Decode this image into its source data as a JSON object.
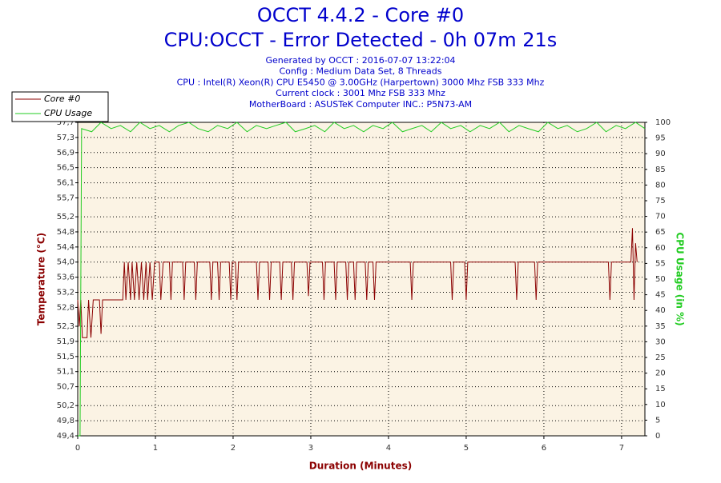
{
  "chart_data": {
    "type": "line",
    "title": "OCCT 4.4.2 - Core #0",
    "subtitle": "CPU:OCCT - Error Detected - 0h 07m 21s",
    "info_lines": [
      "Generated by OCCT : 2016-07-07 13:22:04",
      "Config : Medium Data Set, 8 Threads",
      "CPU : Intel(R) Xeon(R) CPU E5450 @ 3.00GHz (Harpertown) 3000 Mhz FSB 333 Mhz",
      "Current clock : 3001 Mhz FSB 333 Mhz",
      "MotherBoard : ASUSTeK Computer INC.: P5N73-AM"
    ],
    "x_label": "Duration (Minutes)",
    "y_label": "Temperature (°C)",
    "y2_label": "CPU Usage (in %)",
    "xlim": [
      0,
      7.3
    ],
    "xticks": [
      0,
      1,
      2,
      3,
      4,
      5,
      6,
      7
    ],
    "ylim": [
      49.4,
      57.7
    ],
    "yticks": [
      {
        "value": 49.4,
        "label": "49,4"
      },
      {
        "value": 49.8,
        "label": "49,8"
      },
      {
        "value": 50.2,
        "label": "50,2"
      },
      {
        "value": 50.7,
        "label": "50,7"
      },
      {
        "value": 51.1,
        "label": "51,1"
      },
      {
        "value": 51.5,
        "label": "51,5"
      },
      {
        "value": 51.9,
        "label": "51,9"
      },
      {
        "value": 52.3,
        "label": "52,3"
      },
      {
        "value": 52.8,
        "label": "52,8"
      },
      {
        "value": 53.2,
        "label": "53,2"
      },
      {
        "value": 53.6,
        "label": "53,6"
      },
      {
        "value": 54.0,
        "label": "54,0"
      },
      {
        "value": 54.4,
        "label": "54,4"
      },
      {
        "value": 54.8,
        "label": "54,8"
      },
      {
        "value": 55.2,
        "label": "55,2"
      },
      {
        "value": 55.7,
        "label": "55,7"
      },
      {
        "value": 56.1,
        "label": "56,1"
      },
      {
        "value": 56.5,
        "label": "56,5"
      },
      {
        "value": 56.9,
        "label": "56,9"
      },
      {
        "value": 57.3,
        "label": "57,3"
      },
      {
        "value": 57.7,
        "label": "57,7"
      }
    ],
    "y2lim": [
      0,
      100
    ],
    "y2ticks": [
      0,
      5,
      10,
      15,
      20,
      25,
      30,
      35,
      40,
      45,
      50,
      55,
      60,
      65,
      70,
      75,
      80,
      85,
      90,
      95,
      100
    ],
    "grid": true,
    "legend": "top-left",
    "series": [
      {
        "name": "Core #0",
        "color": "#8b0000",
        "x": [
          0,
          0.02,
          0.04,
          0.06,
          0.12,
          0.14,
          0.17,
          0.2,
          0.28,
          0.3,
          0.32,
          0.58,
          0.6,
          0.62,
          0.65,
          0.68,
          0.7,
          0.73,
          0.76,
          0.79,
          0.82,
          0.85,
          0.88,
          0.9,
          0.93,
          0.96,
          0.99,
          1.05,
          1.07,
          1.1,
          1.18,
          1.2,
          1.22,
          1.35,
          1.37,
          1.39,
          1.5,
          1.52,
          1.54,
          1.7,
          1.72,
          1.74,
          1.8,
          1.82,
          1.84,
          1.95,
          1.97,
          1.99,
          2.03,
          2.05,
          2.07,
          2.3,
          2.32,
          2.34,
          2.45,
          2.47,
          2.49,
          2.6,
          2.62,
          2.64,
          2.75,
          2.77,
          2.79,
          2.95,
          2.97,
          2.99,
          3.15,
          3.17,
          3.19,
          3.3,
          3.32,
          3.34,
          3.45,
          3.47,
          3.49,
          3.55,
          3.57,
          3.59,
          3.7,
          3.72,
          3.74,
          3.8,
          3.82,
          3.84,
          4.28,
          4.3,
          4.32,
          4.8,
          4.82,
          4.84,
          4.98,
          5.0,
          5.02,
          5.63,
          5.65,
          5.67,
          5.88,
          5.9,
          5.92,
          6.83,
          6.85,
          6.87,
          7.12,
          7.14,
          7.16,
          7.18,
          7.2
        ],
        "values": [
          53,
          52.3,
          53,
          52,
          52,
          53,
          52,
          53,
          53,
          52.1,
          53,
          53,
          54,
          53,
          54,
          53,
          54,
          53,
          54,
          53,
          54,
          53,
          54,
          53,
          54,
          53,
          54,
          54,
          53,
          54,
          54,
          53,
          54,
          54,
          53,
          54,
          54,
          53,
          54,
          54,
          53,
          54,
          54,
          53,
          54,
          54,
          53,
          54,
          54,
          53,
          54,
          54,
          53,
          54,
          54,
          53,
          54,
          54,
          53,
          54,
          54,
          53,
          54,
          54,
          53.1,
          54,
          54,
          53,
          54,
          54,
          53,
          54,
          54,
          53,
          54,
          54,
          53,
          54,
          54,
          53,
          54,
          54,
          53,
          54,
          54,
          53,
          54,
          54,
          53,
          54,
          54,
          53,
          54,
          54,
          53,
          54,
          54,
          53,
          54,
          54,
          53,
          54,
          54,
          54.9,
          53,
          54.5,
          54
        ]
      },
      {
        "name": "CPU Usage",
        "color": "#22cc22",
        "axis": "y2",
        "x": [
          0,
          0.03,
          0.05,
          0.18,
          0.3,
          0.43,
          0.55,
          0.68,
          0.8,
          0.93,
          1.05,
          1.18,
          1.3,
          1.43,
          1.55,
          1.68,
          1.8,
          1.93,
          2.05,
          2.18,
          2.3,
          2.43,
          2.55,
          2.68,
          2.8,
          2.93,
          3.05,
          3.18,
          3.3,
          3.43,
          3.55,
          3.68,
          3.8,
          3.93,
          4.05,
          4.18,
          4.3,
          4.43,
          4.55,
          4.68,
          4.8,
          4.93,
          5.05,
          5.18,
          5.3,
          5.43,
          5.55,
          5.68,
          5.8,
          5.93,
          6.05,
          6.18,
          6.3,
          6.43,
          6.55,
          6.68,
          6.8,
          6.93,
          7.05,
          7.18,
          7.3
        ],
        "values": [
          0,
          0,
          98,
          97,
          100,
          98,
          99,
          97,
          100,
          98,
          99,
          97,
          99,
          100,
          98,
          97,
          99,
          98,
          100,
          97,
          99,
          98,
          99,
          100,
          97,
          98,
          99,
          97,
          100,
          98,
          99,
          97,
          99,
          98,
          100,
          97,
          98,
          99,
          97,
          100,
          98,
          99,
          97,
          99,
          98,
          100,
          97,
          99,
          98,
          97,
          100,
          98,
          99,
          97,
          98,
          100,
          97,
          99,
          98,
          100,
          98
        ]
      }
    ]
  }
}
